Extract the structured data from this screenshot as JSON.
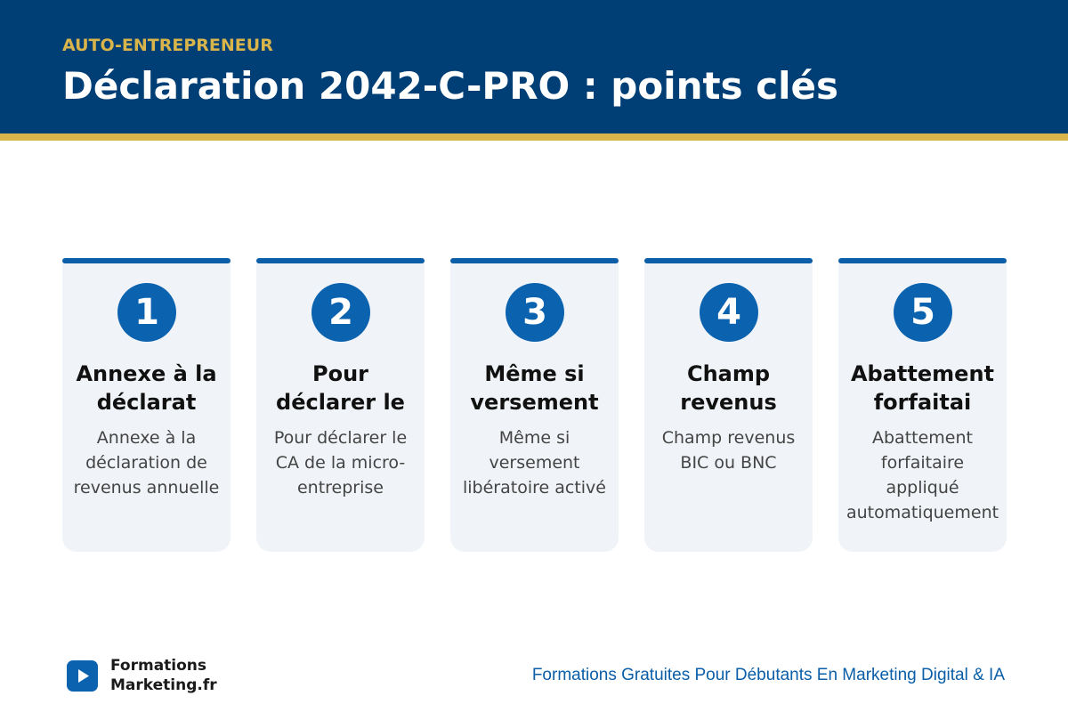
{
  "header": {
    "kicker": "AUTO-ENTREPRENEUR",
    "title": "Déclaration 2042-C-PRO : points clés"
  },
  "cards": [
    {
      "number": 1,
      "title": "Annexe à la déclarat",
      "text": "Annexe à la déclaration de revenus annuelle"
    },
    {
      "number": 2,
      "title": "Pour déclarer le",
      "text": "Pour déclarer le CA de la micro-entreprise"
    },
    {
      "number": 3,
      "title": "Même si versement",
      "text": "Même si versement libératoire activé"
    },
    {
      "number": 4,
      "title": "Champ revenus",
      "text": "Champ revenus BIC ou BNC"
    },
    {
      "number": 5,
      "title": "Abattement forfaitai",
      "text": "Abattement forfaitaire appliqué automatiquement"
    }
  ],
  "footer": {
    "logo": {
      "line1": "Formations",
      "line2": "Marketing",
      "suffix": ".fr"
    },
    "tagline": "Formations Gratuites Pour Débutants En Marketing Digital & IA"
  }
}
